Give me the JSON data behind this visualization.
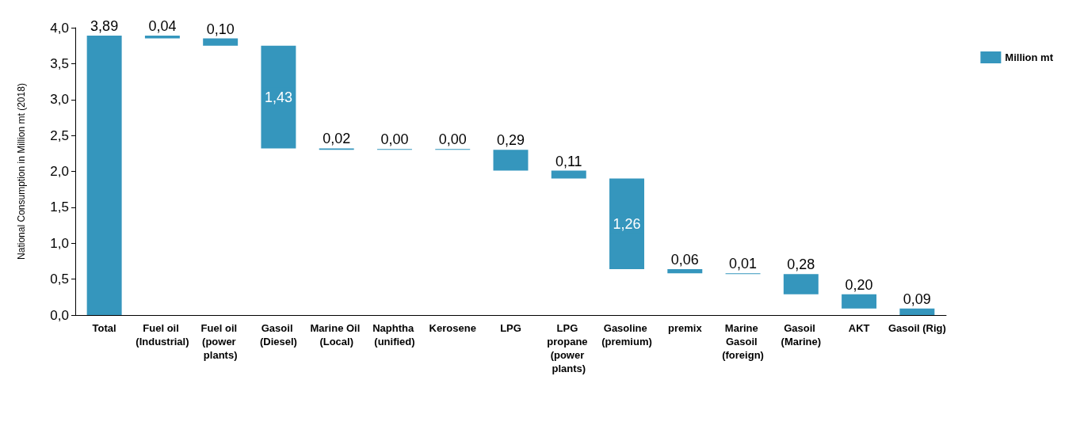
{
  "chart_data": {
    "type": "bar",
    "ylabel": "National Consumption in Million mt (2018)",
    "categories": [
      "Total",
      "Fuel oil (Industrial)",
      "Fuel oil (power plants)",
      "Gasoil (Diesel)",
      "Marine Oil (Local)",
      "Naphtha (unified)",
      "Kerosene",
      "LPG",
      "LPG propane (power plants)",
      "Gasoline (premium)",
      "premix",
      "Marine Gasoil (foreign)",
      "Gasoil (Marine)",
      "AKT",
      "Gasoil (Rig)"
    ],
    "series": [
      {
        "name": "Million mt",
        "color": "#3596bd",
        "base": [
          0,
          3.85,
          3.75,
          2.32,
          2.3,
          2.3,
          2.3,
          2.01,
          1.9,
          0.64,
          0.58,
          0.57,
          0.29,
          0.09,
          0
        ],
        "values": [
          3.89,
          0.04,
          0.1,
          1.43,
          0.02,
          0.0,
          0.0,
          0.29,
          0.11,
          1.26,
          0.06,
          0.01,
          0.28,
          0.2,
          0.09
        ],
        "value_labels": [
          "3,89",
          "0,04",
          "0,10",
          "1,43",
          "0,02",
          "0,00",
          "0,00",
          "0,29",
          "0,11",
          "1,26",
          "0,06",
          "0,01",
          "0,28",
          "0,20",
          "0,09"
        ]
      }
    ],
    "ylim": [
      0,
      4
    ],
    "yticks": [
      {
        "value": 0,
        "label": "0,0"
      },
      {
        "value": 0.5,
        "label": "0,5"
      },
      {
        "value": 1,
        "label": "1,0"
      },
      {
        "value": 1.5,
        "label": "1,5"
      },
      {
        "value": 2,
        "label": "2,0"
      },
      {
        "value": 2.5,
        "label": "2,5"
      },
      {
        "value": 3,
        "label": "3,0"
      },
      {
        "value": 3.5,
        "label": "3,5"
      },
      {
        "value": 4,
        "label": "4,0"
      }
    ],
    "legend": "right"
  }
}
